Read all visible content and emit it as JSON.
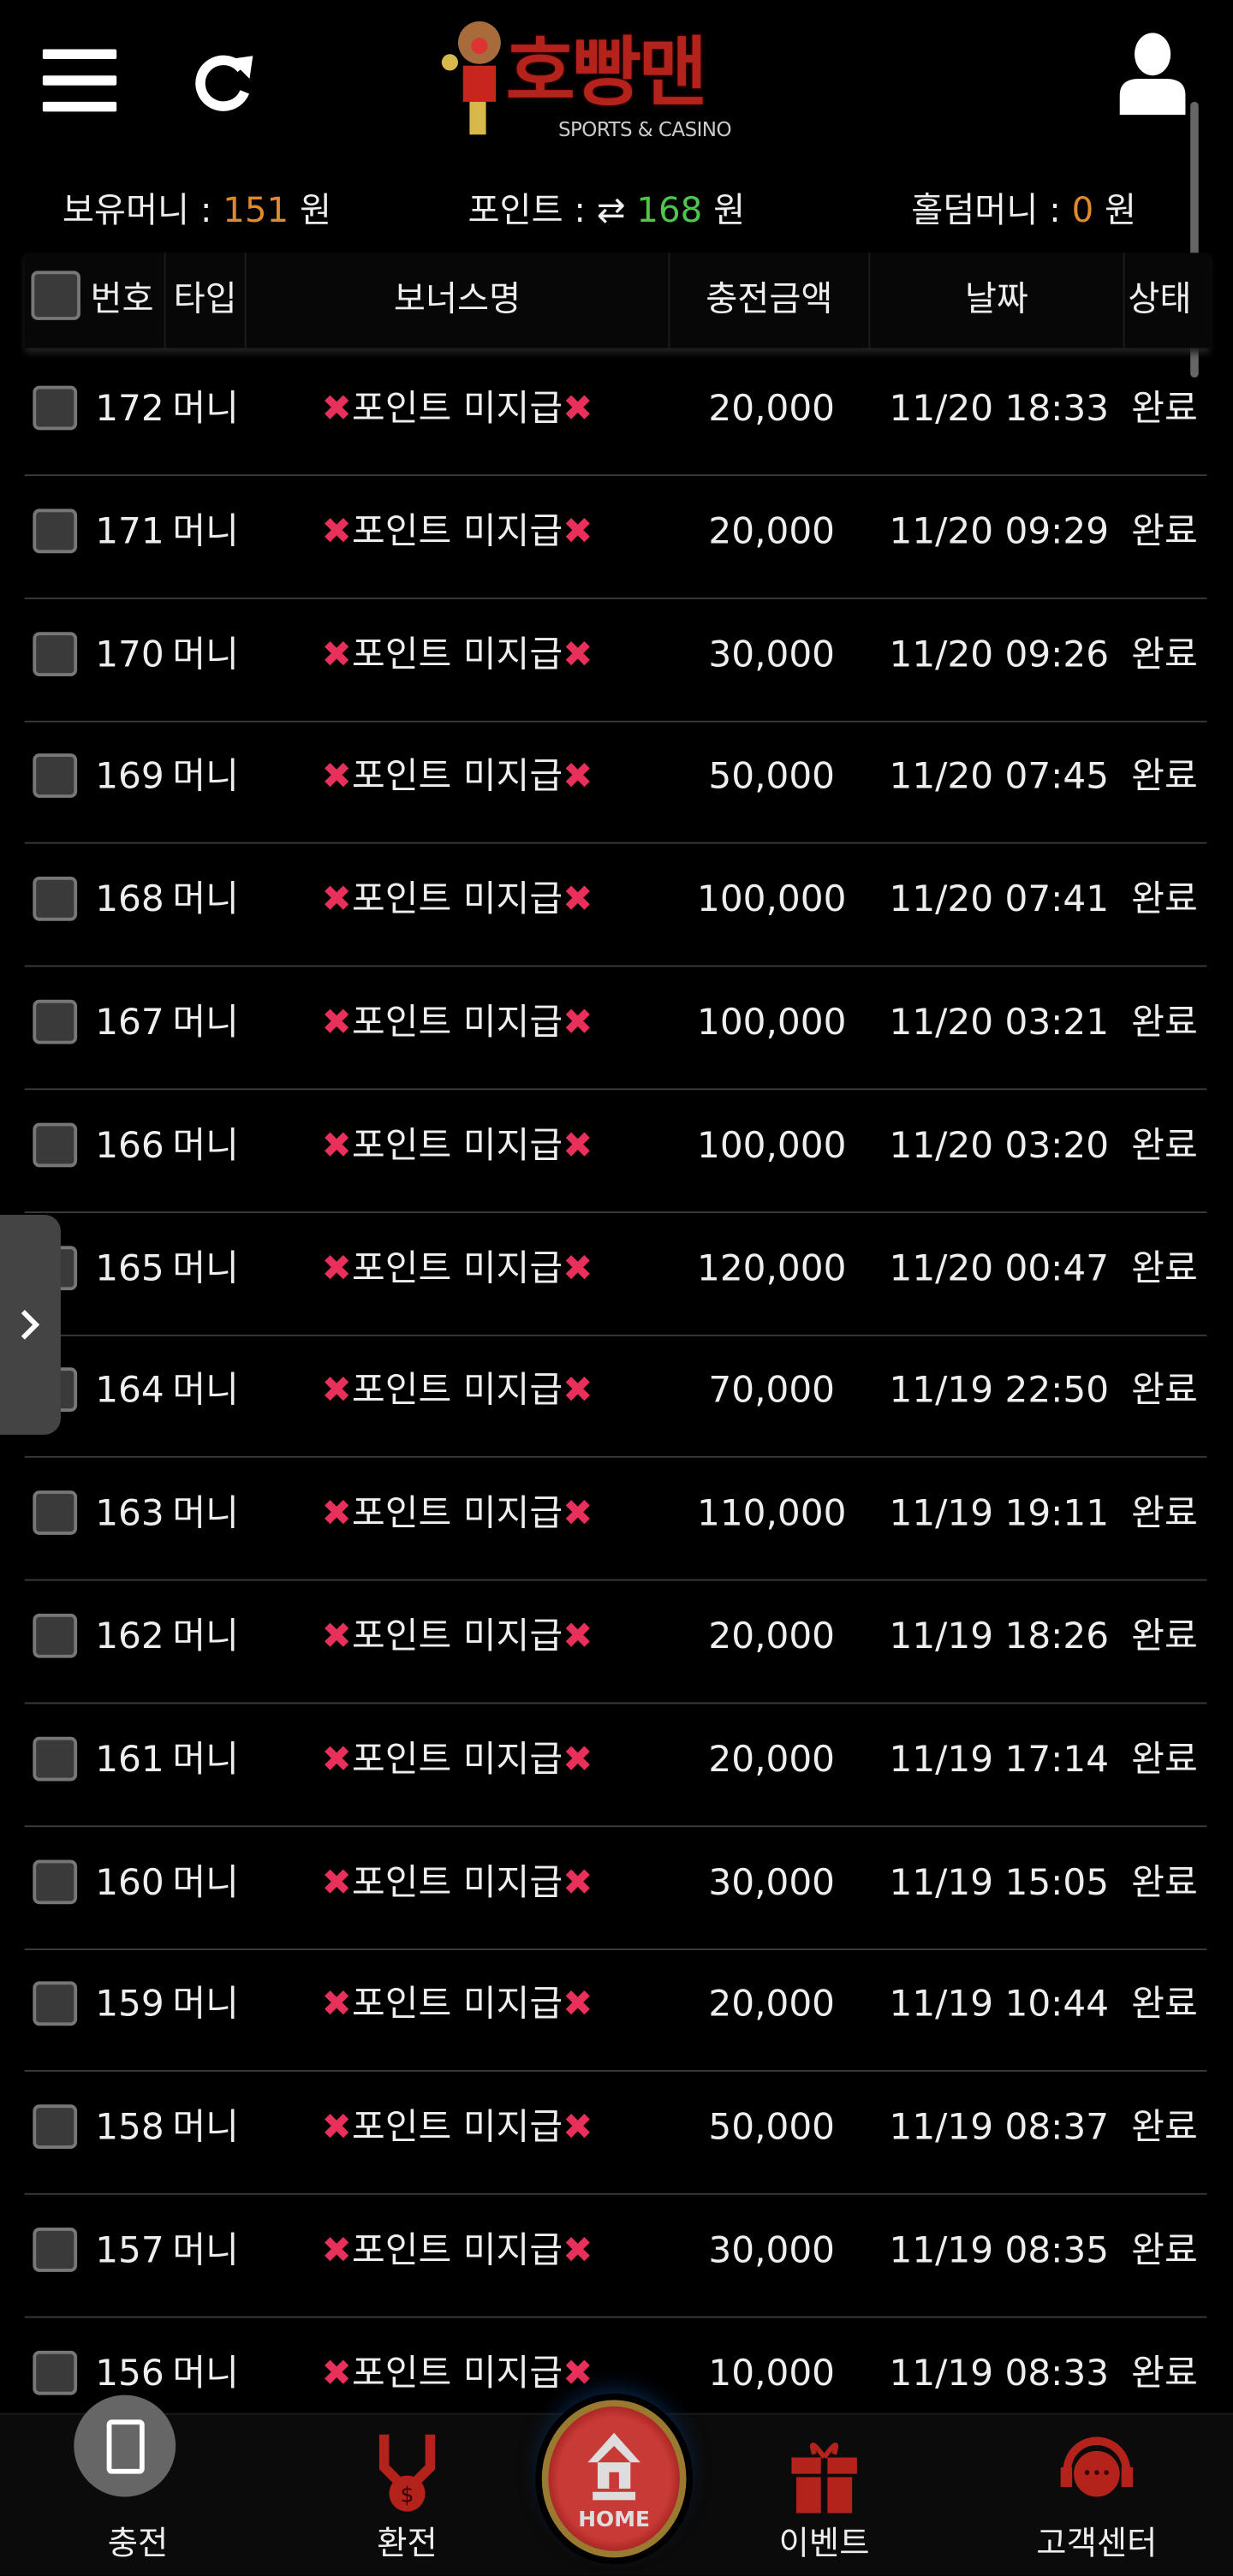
{
  "header": {
    "logo_text": "호빵맨",
    "logo_sub": "SPORTS & CASINO",
    "menu_icon": "hamburger-icon",
    "refresh_icon": "refresh-icon",
    "user_icon": "user-icon"
  },
  "balances": {
    "money_label": "보유머니 :",
    "money_value": "151",
    "money_unit": "원",
    "point_label": "포인트 :",
    "point_value": "168",
    "point_unit": "원",
    "holdem_label": "홀덤머니 :",
    "holdem_value": "0",
    "holdem_unit": "원",
    "colors": {
      "money": "#e08a2c",
      "point": "#4cc74c",
      "holdem": "#e08a2c"
    }
  },
  "table": {
    "headers": [
      "번호",
      "타입",
      "보너스명",
      "충전금액",
      "날짜",
      "상태"
    ],
    "rows": [
      {
        "no": "172",
        "type": "머니",
        "bonus": "포인트 미지급",
        "amount": "20,000",
        "date": "11/20 18:33",
        "status": "완료"
      },
      {
        "no": "171",
        "type": "머니",
        "bonus": "포인트 미지급",
        "amount": "20,000",
        "date": "11/20 09:29",
        "status": "완료"
      },
      {
        "no": "170",
        "type": "머니",
        "bonus": "포인트 미지급",
        "amount": "30,000",
        "date": "11/20 09:26",
        "status": "완료"
      },
      {
        "no": "169",
        "type": "머니",
        "bonus": "포인트 미지급",
        "amount": "50,000",
        "date": "11/20 07:45",
        "status": "완료"
      },
      {
        "no": "168",
        "type": "머니",
        "bonus": "포인트 미지급",
        "amount": "100,000",
        "date": "11/20 07:41",
        "status": "완료"
      },
      {
        "no": "167",
        "type": "머니",
        "bonus": "포인트 미지급",
        "amount": "100,000",
        "date": "11/20 03:21",
        "status": "완료"
      },
      {
        "no": "166",
        "type": "머니",
        "bonus": "포인트 미지급",
        "amount": "100,000",
        "date": "11/20 03:20",
        "status": "완료"
      },
      {
        "no": "165",
        "type": "머니",
        "bonus": "포인트 미지급",
        "amount": "120,000",
        "date": "11/20 00:47",
        "status": "완료"
      },
      {
        "no": "164",
        "type": "머니",
        "bonus": "포인트 미지급",
        "amount": "70,000",
        "date": "11/19 22:50",
        "status": "완료"
      },
      {
        "no": "163",
        "type": "머니",
        "bonus": "포인트 미지급",
        "amount": "110,000",
        "date": "11/19 19:11",
        "status": "완료"
      },
      {
        "no": "162",
        "type": "머니",
        "bonus": "포인트 미지급",
        "amount": "20,000",
        "date": "11/19 18:26",
        "status": "완료"
      },
      {
        "no": "161",
        "type": "머니",
        "bonus": "포인트 미지급",
        "amount": "20,000",
        "date": "11/19 17:14",
        "status": "완료"
      },
      {
        "no": "160",
        "type": "머니",
        "bonus": "포인트 미지급",
        "amount": "30,000",
        "date": "11/19 15:05",
        "status": "완료"
      },
      {
        "no": "159",
        "type": "머니",
        "bonus": "포인트 미지급",
        "amount": "20,000",
        "date": "11/19 10:44",
        "status": "완료"
      },
      {
        "no": "158",
        "type": "머니",
        "bonus": "포인트 미지급",
        "amount": "50,000",
        "date": "11/19 08:37",
        "status": "완료"
      },
      {
        "no": "157",
        "type": "머니",
        "bonus": "포인트 미지급",
        "amount": "30,000",
        "date": "11/19 08:35",
        "status": "완료"
      },
      {
        "no": "156",
        "type": "머니",
        "bonus": "포인트 미지급",
        "amount": "10,000",
        "date": "11/19 08:33",
        "status": "완료"
      }
    ]
  },
  "bottom_nav": {
    "items": [
      {
        "label": "충전",
        "icon": "charge-icon"
      },
      {
        "label": "환전",
        "icon": "exchange-money-icon"
      },
      {
        "label": "HOME",
        "icon": "home-icon"
      },
      {
        "label": "이벤트",
        "icon": "gift-icon"
      },
      {
        "label": "고객센터",
        "icon": "support-headset-icon"
      }
    ],
    "accent": "#b3221b"
  }
}
